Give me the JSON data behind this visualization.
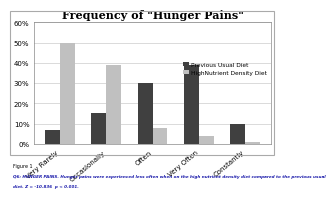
{
  "title": "Frequency of \"Hunger Pains\"",
  "categories": [
    "Very Rarely",
    "Occasionally",
    "Often",
    "Very Often",
    "Constantly"
  ],
  "previous_usual_diet": [
    7,
    15,
    30,
    39,
    10
  ],
  "high_nutrient_diet": [
    50,
    39,
    8,
    4,
    1
  ],
  "color_previous": "#404040",
  "color_high_nutrient": "#c0c0c0",
  "ylim": [
    0,
    60
  ],
  "yticks": [
    0,
    10,
    20,
    30,
    40,
    50,
    60
  ],
  "legend_previous": "Previous Usual Diet",
  "legend_high_nutrient": "HighNutrient Density Diet",
  "footnote1": "Figure 1",
  "footnote2": "Q6: HUNGER PAINS. Hunger pains were experienced less often when on the high nutrient density diet compared to the previous usual",
  "footnote3": "diet. Z = -10.836  p < 0.001.",
  "bg_color": "#ffffff",
  "outer_bg": "#ffffff"
}
